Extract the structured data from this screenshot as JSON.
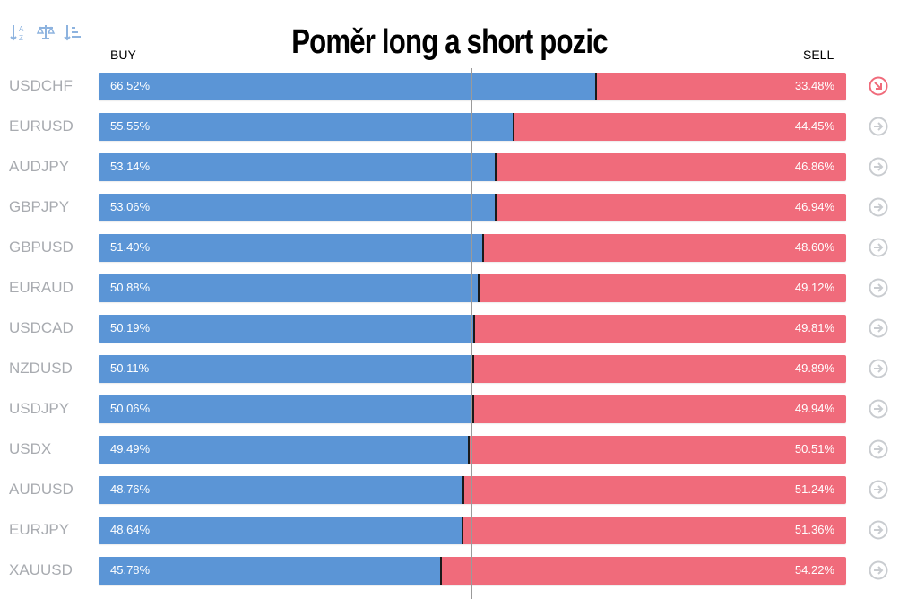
{
  "title": "Poměr long a short pozic",
  "labels": {
    "buy": "BUY",
    "sell": "SELL"
  },
  "toolbar": {
    "icons": [
      "sort-alpha-icon",
      "balance-icon",
      "sort-amount-icon"
    ],
    "color": "#8db3df"
  },
  "colors": {
    "buy": "#5b95d6",
    "sell": "#f06b7b",
    "pair_text": "#a8abb0",
    "arrow_active": "#f06b7b",
    "arrow_inactive": "#c9ccd0"
  },
  "rows": [
    {
      "pair": "USDCHF",
      "buy": "66.52%",
      "sell": "33.48%",
      "buy_value": 66.52,
      "signal": "down-right",
      "active": true
    },
    {
      "pair": "EURUSD",
      "buy": "55.55%",
      "sell": "44.45%",
      "buy_value": 55.55,
      "signal": "right",
      "active": false
    },
    {
      "pair": "AUDJPY",
      "buy": "53.14%",
      "sell": "46.86%",
      "buy_value": 53.14,
      "signal": "right",
      "active": false
    },
    {
      "pair": "GBPJPY",
      "buy": "53.06%",
      "sell": "46.94%",
      "buy_value": 53.06,
      "signal": "right",
      "active": false
    },
    {
      "pair": "GBPUSD",
      "buy": "51.40%",
      "sell": "48.60%",
      "buy_value": 51.4,
      "signal": "right",
      "active": false
    },
    {
      "pair": "EURAUD",
      "buy": "50.88%",
      "sell": "49.12%",
      "buy_value": 50.88,
      "signal": "right",
      "active": false
    },
    {
      "pair": "USDCAD",
      "buy": "50.19%",
      "sell": "49.81%",
      "buy_value": 50.19,
      "signal": "right",
      "active": false
    },
    {
      "pair": "NZDUSD",
      "buy": "50.11%",
      "sell": "49.89%",
      "buy_value": 50.11,
      "signal": "right",
      "active": false
    },
    {
      "pair": "USDJPY",
      "buy": "50.06%",
      "sell": "49.94%",
      "buy_value": 50.06,
      "signal": "right",
      "active": false
    },
    {
      "pair": "USDX",
      "buy": "49.49%",
      "sell": "50.51%",
      "buy_value": 49.49,
      "signal": "right",
      "active": false
    },
    {
      "pair": "AUDUSD",
      "buy": "48.76%",
      "sell": "51.24%",
      "buy_value": 48.76,
      "signal": "right",
      "active": false
    },
    {
      "pair": "EURJPY",
      "buy": "48.64%",
      "sell": "51.36%",
      "buy_value": 48.64,
      "signal": "right",
      "active": false
    },
    {
      "pair": "XAUUSD",
      "buy": "45.78%",
      "sell": "54.22%",
      "buy_value": 45.78,
      "signal": "right",
      "active": false
    }
  ]
}
